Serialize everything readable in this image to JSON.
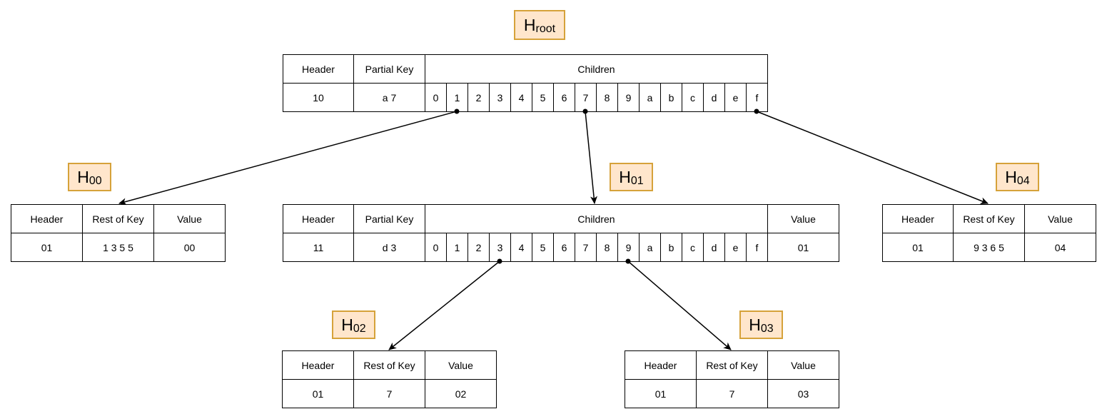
{
  "nodes": [
    {
      "id": "root",
      "label": {
        "main": "H",
        "sub": "root"
      },
      "headers": [
        "Header",
        "Partial Key",
        "Children"
      ],
      "values": {
        "header": "10",
        "partial_key": "a 7"
      },
      "children": [
        "0",
        "1",
        "2",
        "3",
        "4",
        "5",
        "6",
        "7",
        "8",
        "9",
        "a",
        "b",
        "c",
        "d",
        "e",
        "f"
      ]
    },
    {
      "id": "n00",
      "label": {
        "main": "H",
        "sub": "00"
      },
      "headers": [
        "Header",
        "Rest of Key",
        "Value"
      ],
      "values": [
        "01",
        "1 3 5 5",
        "00"
      ]
    },
    {
      "id": "n01",
      "label": {
        "main": "H",
        "sub": "01"
      },
      "headers": [
        "Header",
        "Partial Key",
        "Children",
        "Value"
      ],
      "values": {
        "header": "11",
        "partial_key": "d 3",
        "value": "01"
      },
      "children": [
        "0",
        "1",
        "2",
        "3",
        "4",
        "5",
        "6",
        "7",
        "8",
        "9",
        "a",
        "b",
        "c",
        "d",
        "e",
        "f"
      ]
    },
    {
      "id": "n04",
      "label": {
        "main": "H",
        "sub": "04"
      },
      "headers": [
        "Header",
        "Rest of Key",
        "Value"
      ],
      "values": [
        "01",
        "9 3 6 5",
        "04"
      ]
    },
    {
      "id": "n02",
      "label": {
        "main": "H",
        "sub": "02"
      },
      "headers": [
        "Header",
        "Rest of Key",
        "Value"
      ],
      "values": [
        "01",
        "7",
        "02"
      ]
    },
    {
      "id": "n03",
      "label": {
        "main": "H",
        "sub": "03"
      },
      "headers": [
        "Header",
        "Rest of Key",
        "Value"
      ],
      "values": [
        "01",
        "7",
        "03"
      ]
    }
  ],
  "edges": [
    {
      "from": "root",
      "child": "1",
      "to": "n00"
    },
    {
      "from": "root",
      "child": "7",
      "to": "n01"
    },
    {
      "from": "root",
      "child": "f",
      "to": "n04"
    },
    {
      "from": "n01",
      "child": "3",
      "to": "n02"
    },
    {
      "from": "n01",
      "child": "9",
      "to": "n03"
    }
  ]
}
